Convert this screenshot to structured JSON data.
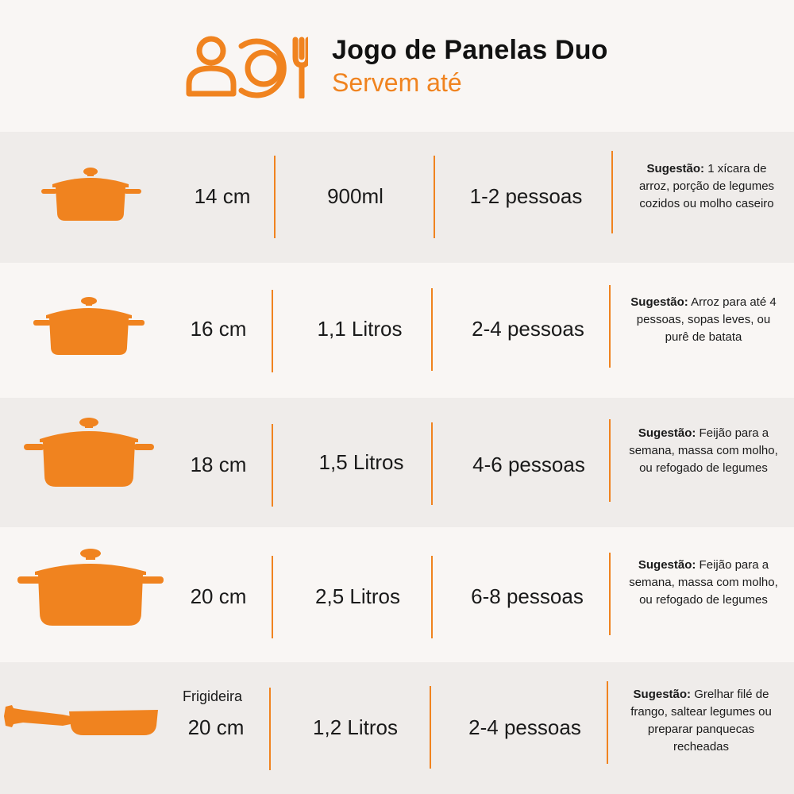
{
  "header": {
    "title": "Jogo de Panelas Duo",
    "subtitle": "Servem até",
    "icon": "people-plate-fork-icon",
    "accent": "#f0831f"
  },
  "rows": [
    {
      "size": "14 cm",
      "capacity": "900ml",
      "serves": "1-2 pessoas",
      "suggestion_label": "Sugestão:",
      "suggestion_text": " 1 xícara de arroz, porção de legumes cozidos ou molho caseiro",
      "icon": "pot-icon"
    },
    {
      "size": "16 cm",
      "capacity": "1,1 Litros",
      "serves": "2-4 pessoas",
      "suggestion_label": "Sugestão:",
      "suggestion_text": " Arroz para até 4 pessoas, sopas leves, ou purê de batata",
      "icon": "pot-icon"
    },
    {
      "size": "18 cm",
      "capacity": "1,5 Litros",
      "serves": "4-6 pessoas",
      "suggestion_label": "Sugestão:",
      "suggestion_text": " Feijão para a semana, massa com molho, ou refogado de legumes",
      "icon": "pot-icon"
    },
    {
      "size": "20 cm",
      "capacity": "2,5 Litros",
      "serves": "6-8 pessoas",
      "suggestion_label": "Sugestão:",
      "suggestion_text": " Feijão para a semana, massa com molho, ou refogado de legumes",
      "icon": "pot-icon"
    },
    {
      "label": "Frigideira",
      "size": "20 cm",
      "capacity": "1,2 Litros",
      "serves": "2-4 pessoas",
      "suggestion_label": "Sugestão:",
      "suggestion_text": " Grelhar filé de frango, saltear legumes ou preparar panquecas recheadas",
      "icon": "frying-pan-icon"
    }
  ]
}
